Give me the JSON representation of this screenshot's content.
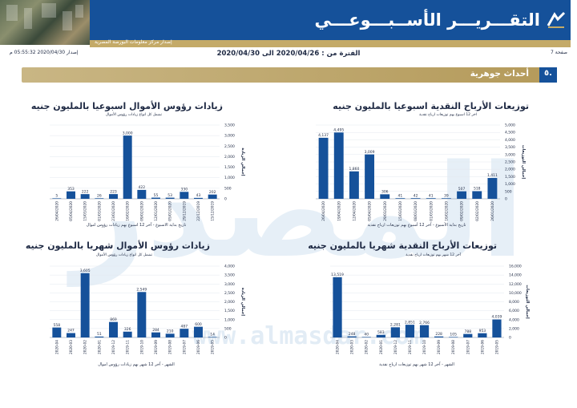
{
  "header": {
    "report_title": "التقـــريـــر الأســبـــوعـــي",
    "subtitle": "إصدار مركز معلومات البورصة المصرية",
    "page_label": "صفحة 7",
    "issue_label": "إصدار 2020/04/30 05:55:32 م",
    "period": "الفترة من : 2020/04/26 الى 2020/04/30",
    "brand_color": "#15519a",
    "accent_color": "#c4aa68"
  },
  "section": {
    "number": "٥.",
    "title": "أحداث جوهرية"
  },
  "watermark": {
    "url": "www.almasdar.com",
    "brand": "المصدر"
  },
  "chart_data": [
    {
      "id": "weekly-dividends",
      "type": "bar",
      "title": "توزيعات الأرباح النقدية اسبوعيا بالمليون جنيه",
      "subtitle": "اخر 12 اسبوع بهم توزيعات ارباح نقدية",
      "xlabel": "تاريخ بداية الأسبوع - آخر 12 أسبوع بهم توزيعات ارباح نقدية",
      "ylabel": "إجمالي التوزيعات",
      "categories": [
        "26/04/2020",
        "19/04/2020",
        "12/04/2020",
        "05/04/2020",
        "29/03/2020",
        "15/03/2020",
        "08/03/2020",
        "01/03/2020",
        "16/02/2020",
        "09/02/2020",
        "02/02/2020",
        "26/01/2020"
      ],
      "values": [
        4137,
        4495,
        1860,
        3009,
        306,
        41,
        42,
        41,
        39,
        507,
        518,
        1411
      ],
      "ylim": [
        0,
        5000
      ],
      "yticks": [
        0,
        500,
        1000,
        1500,
        2000,
        2500,
        3000,
        3500,
        4000,
        4500,
        5000
      ],
      "color": "#15519a"
    },
    {
      "id": "weekly-capital-increases",
      "type": "bar",
      "title": "زيادات رؤوس الأموال اسبوعيا بالمليون جنيه",
      "subtitle": "تشمل كل انواع زيادات رؤوس الأموال",
      "xlabel": "تاريخ بداية الاسبوع - آخر 12 اسبوع بهم زيادات رؤوس اموال",
      "ylabel": "إجمالي الزيادة",
      "categories": [
        "26/04/2020",
        "05/04/2020",
        "15/03/2020",
        "01/03/2020",
        "23/02/2020",
        "16/02/2020",
        "09/02/2020",
        "12/01/2020",
        "05/01/2020",
        "29/12/2019",
        "22/12/2019",
        "15/12/2019"
      ],
      "values": [
        5,
        353,
        222,
        26,
        223,
        3000,
        422,
        55,
        53,
        330,
        43,
        202
      ],
      "ylim": [
        0,
        3500
      ],
      "yticks": [
        0,
        500,
        1000,
        1500,
        2000,
        2500,
        3000,
        3500
      ],
      "color": "#15519a"
    },
    {
      "id": "monthly-dividends",
      "type": "bar",
      "title": "توزيعات الأرباح النقدية شهريا بالمليون جنيه",
      "subtitle": "آخر 12 شهر بهم توزيعات ارباح نقدية",
      "xlabel": "الشهر - آخر 12 شهر بهم توزيعات ارباح نقدية",
      "ylabel": "إجمالي التوزيعات",
      "categories": [
        "2020-04",
        "2020-03",
        "2020-02",
        "2020-01",
        "2019-12",
        "2019-11",
        "2019-10",
        "2019-09",
        "2019-08",
        "2019-07",
        "2019-06",
        "2019-05"
      ],
      "values": [
        13519,
        248,
        40,
        583,
        2281,
        2851,
        2766,
        228,
        105,
        788,
        953,
        4039
      ],
      "ylim": [
        0,
        16000
      ],
      "yticks": [
        0,
        2000,
        4000,
        6000,
        8000,
        10000,
        12000,
        14000,
        16000
      ],
      "color": "#15519a"
    },
    {
      "id": "monthly-capital-increases",
      "type": "bar",
      "title": "زيادات رؤوس الأموال شهريا بالمليون جنيه",
      "subtitle": "تشمل كل انواع زيادات رؤوس الأموال",
      "xlabel": "الشهر - آخر 12 شهر بهم زيادات رؤوس اموال",
      "ylabel": "إجمالي الزيادة",
      "categories": [
        "2020-04",
        "2020-03",
        "2020-02",
        "2020-01",
        "2019-12",
        "2019-11",
        "2019-10",
        "2019-09",
        "2019-08",
        "2019-07",
        "2019-06",
        "2019-05"
      ],
      "values": [
        558,
        247,
        3605,
        51,
        869,
        326,
        2549,
        284,
        210,
        487,
        600,
        14
      ],
      "ylim": [
        0,
        4000
      ],
      "yticks": [
        0,
        500,
        1000,
        1500,
        2000,
        2500,
        3000,
        3500,
        4000
      ],
      "color": "#15519a"
    }
  ]
}
